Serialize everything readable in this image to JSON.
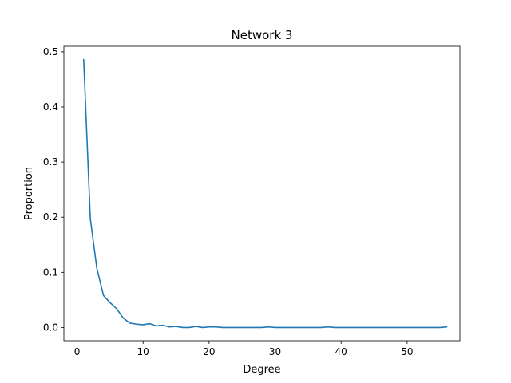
{
  "chart_data": {
    "type": "line",
    "title": "Network 3",
    "xlabel": "Degree",
    "ylabel": "Proportion",
    "xlim": [
      -2,
      58
    ],
    "ylim": [
      -0.024,
      0.51
    ],
    "xticks": [
      0,
      10,
      20,
      30,
      40,
      50
    ],
    "yticks": [
      0.0,
      0.1,
      0.2,
      0.3,
      0.4,
      0.5
    ],
    "grid": false,
    "series": [
      {
        "color": "#1f77b4",
        "x": [
          1,
          2,
          3,
          4,
          5,
          6,
          7,
          8,
          9,
          10,
          11,
          12,
          13,
          14,
          15,
          16,
          17,
          18,
          19,
          20,
          21,
          22,
          23,
          24,
          25,
          26,
          27,
          28,
          29,
          30,
          31,
          32,
          33,
          34,
          35,
          36,
          37,
          38,
          39,
          40,
          41,
          42,
          43,
          44,
          45,
          46,
          47,
          48,
          49,
          50,
          51,
          52,
          53,
          54,
          55,
          56
        ],
        "y": [
          0.486,
          0.198,
          0.107,
          0.058,
          0.045,
          0.034,
          0.017,
          0.008,
          0.006,
          0.005,
          0.007,
          0.003,
          0.004,
          0.001,
          0.002,
          0.0,
          0.0,
          0.002,
          0.0,
          0.001,
          0.001,
          0.0,
          0.0,
          0.0,
          0.0,
          0.0,
          0.0,
          0.0,
          0.001,
          0.0,
          0.0,
          0.0,
          0.0,
          0.0,
          0.0,
          0.0,
          0.0,
          0.001,
          0.0,
          0.0,
          0.0,
          0.0,
          0.0,
          0.0,
          0.0,
          0.0,
          0.0,
          0.0,
          0.0,
          0.0,
          0.0,
          0.0,
          0.0,
          0.0,
          0.0,
          0.001
        ]
      }
    ]
  }
}
